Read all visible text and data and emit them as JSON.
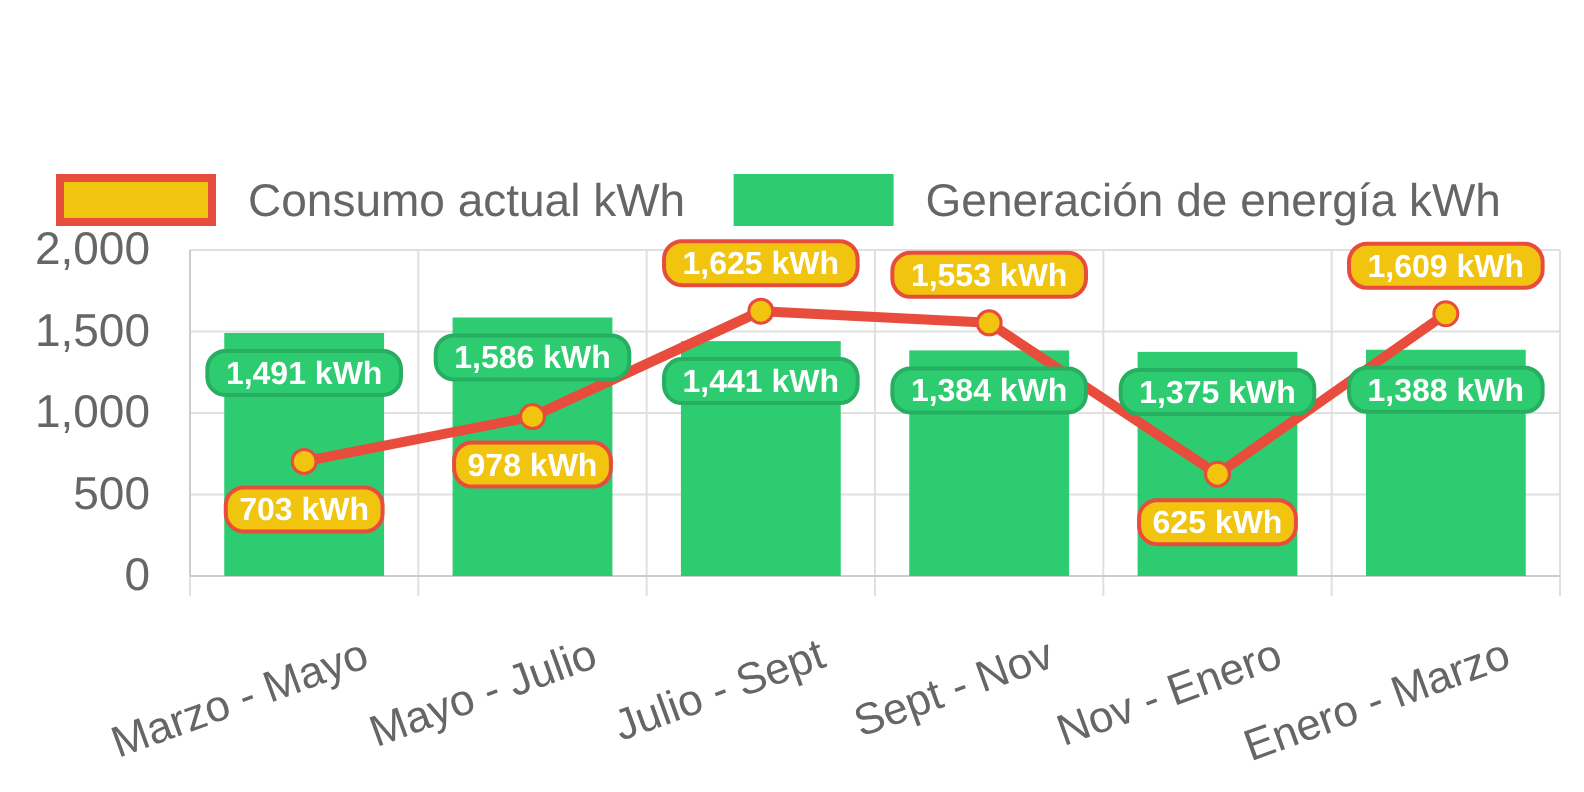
{
  "chart_data": {
    "type": "bar",
    "categories": [
      "Marzo - Mayo",
      "Mayo - Julio",
      "Julio - Sept",
      "Sept - Nov",
      "Nov - Enero",
      "Enero - Marzo"
    ],
    "series": [
      {
        "name": "Consumo actual kWh",
        "type": "line",
        "color": "#e74c3c",
        "values": [
          703,
          978,
          1625,
          1553,
          625,
          1609
        ],
        "value_labels": [
          "703 kWh",
          "978 kWh",
          "1,625 kWh",
          "1,553 kWh",
          "625 kWh",
          "1,609 kWh"
        ]
      },
      {
        "name": "Generación de energía kWh",
        "color": "#2ecc71",
        "values": [
          1491,
          1586,
          1441,
          1384,
          1375,
          1388
        ],
        "value_labels": [
          "1,491 kWh",
          "1,586 kWh",
          "1,441 kWh",
          "1,384 kWh",
          "1,375 kWh",
          "1,388 kWh"
        ]
      }
    ],
    "ylim": [
      0,
      2000
    ],
    "yticks": [
      {
        "value": 0,
        "label": "0"
      },
      {
        "value": 500,
        "label": "500"
      },
      {
        "value": 1000,
        "label": "1,000"
      },
      {
        "value": 1500,
        "label": "1,500"
      },
      {
        "value": 2000,
        "label": "2,000"
      }
    ],
    "grid": true,
    "legend": "top",
    "marker": "circle"
  }
}
